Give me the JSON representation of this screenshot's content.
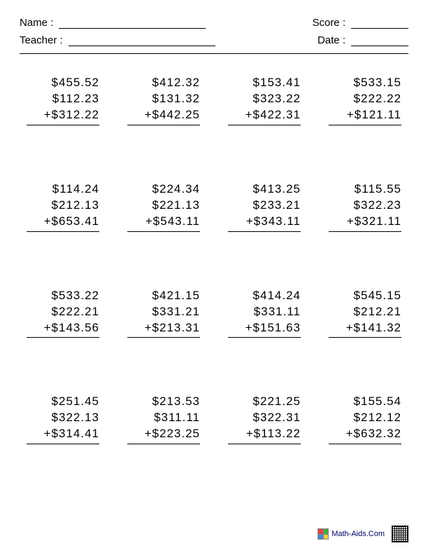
{
  "header": {
    "name_label": "Name :",
    "teacher_label": "Teacher :",
    "score_label": "Score :",
    "date_label": "Date :"
  },
  "footer": {
    "site": "Math-Aids.Com"
  },
  "currency_symbol": "$",
  "operator": "+",
  "problems": [
    {
      "addends": [
        "455.52",
        "112.23",
        "312.22"
      ]
    },
    {
      "addends": [
        "412.32",
        "131.32",
        "442.25"
      ]
    },
    {
      "addends": [
        "153.41",
        "323.22",
        "422.31"
      ]
    },
    {
      "addends": [
        "533.15",
        "222.22",
        "121.11"
      ]
    },
    {
      "addends": [
        "114.24",
        "212.13",
        "653.41"
      ]
    },
    {
      "addends": [
        "224.34",
        "221.13",
        "543.11"
      ]
    },
    {
      "addends": [
        "413.25",
        "233.21",
        "343.11"
      ]
    },
    {
      "addends": [
        "115.55",
        "322.23",
        "321.11"
      ]
    },
    {
      "addends": [
        "533.22",
        "222.21",
        "143.56"
      ]
    },
    {
      "addends": [
        "421.15",
        "331.21",
        "213.31"
      ]
    },
    {
      "addends": [
        "414.24",
        "331.11",
        "151.63"
      ]
    },
    {
      "addends": [
        "545.15",
        "212.21",
        "141.32"
      ]
    },
    {
      "addends": [
        "251.45",
        "322.13",
        "314.41"
      ]
    },
    {
      "addends": [
        "213.53",
        "311.11",
        "223.25"
      ]
    },
    {
      "addends": [
        "221.25",
        "322.31",
        "113.22"
      ]
    },
    {
      "addends": [
        "155.54",
        "212.12",
        "632.32"
      ]
    }
  ],
  "style": {
    "page_bg": "#ffffff",
    "text_color": "#000000",
    "font_size_header": 15,
    "font_size_problem": 17,
    "rule_color": "#000000",
    "columns": 4,
    "rows": 4
  }
}
